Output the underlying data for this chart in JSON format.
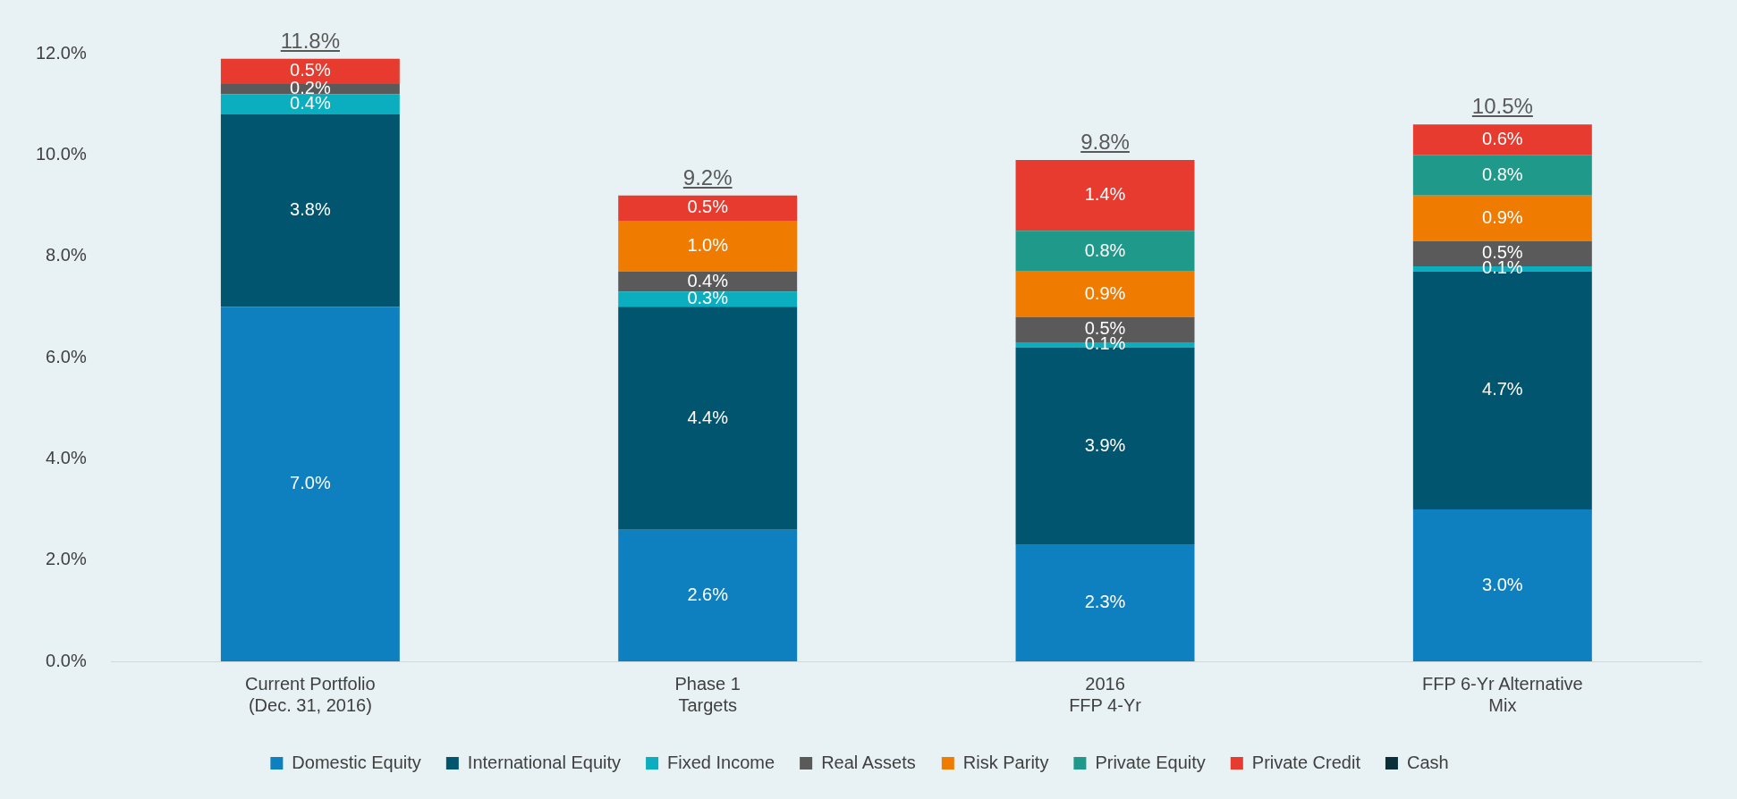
{
  "chart_data": {
    "type": "bar",
    "stacked": true,
    "categories": [
      "Current Portfolio\n(Dec. 31, 2016)",
      "Phase 1\nTargets",
      "2016\nFFP 4-Yr",
      "FFP 6-Yr Alternative\nMix"
    ],
    "series": [
      {
        "name": "Domestic Equity",
        "color": "#0e80c0",
        "values": [
          7.0,
          2.6,
          2.3,
          3.0
        ],
        "value_labels": [
          "7.0%",
          "2.6%",
          "2.3%",
          "3.0%"
        ]
      },
      {
        "name": "International Equity",
        "color": "#02556e",
        "values": [
          3.8,
          4.4,
          3.9,
          4.7
        ],
        "value_labels": [
          "3.8%",
          "4.4%",
          "3.9%",
          "4.7%"
        ]
      },
      {
        "name": "Fixed Income",
        "color": "#0aaebe",
        "values": [
          0.4,
          0.3,
          0.1,
          0.1
        ],
        "value_labels": [
          "0.4%",
          "0.3%",
          "0.1%",
          "0.1%"
        ]
      },
      {
        "name": "Real Assets",
        "color": "#5a5a5a",
        "values": [
          0.2,
          0.4,
          0.5,
          0.5
        ],
        "value_labels": [
          "0.2%",
          "0.4%",
          "0.5%",
          "0.5%"
        ]
      },
      {
        "name": "Risk Parity",
        "color": "#ef7b00",
        "values": [
          null,
          1.0,
          0.9,
          0.9
        ],
        "value_labels": [
          null,
          "1.0%",
          "0.9%",
          "0.9%"
        ]
      },
      {
        "name": "Private Equity",
        "color": "#1f9a8a",
        "values": [
          null,
          null,
          0.8,
          0.8
        ],
        "value_labels": [
          null,
          null,
          "0.8%",
          "0.8%"
        ]
      },
      {
        "name": "Private Credit",
        "color": "#e63b2e",
        "values": [
          0.5,
          0.5,
          1.4,
          0.6
        ],
        "value_labels": [
          "0.5%",
          "0.5%",
          "1.4%",
          "0.6%"
        ]
      },
      {
        "name": "Cash",
        "color": "#0b2f3a",
        "values": [
          null,
          null,
          null,
          null
        ]
      }
    ],
    "totals": [
      "11.8%",
      "9.2%",
      "9.8%",
      "10.5%"
    ],
    "ylim": [
      0,
      12
    ],
    "yticks": [
      {
        "value": 0,
        "label": "0.0%"
      },
      {
        "value": 2,
        "label": "2.0%"
      },
      {
        "value": 4,
        "label": "4.0%"
      },
      {
        "value": 6,
        "label": "6.0%"
      },
      {
        "value": 8,
        "label": "8.0%"
      },
      {
        "value": 10,
        "label": "10.0%"
      },
      {
        "value": 12,
        "label": "12.0%"
      }
    ],
    "grid": false,
    "legend": "bottom"
  }
}
